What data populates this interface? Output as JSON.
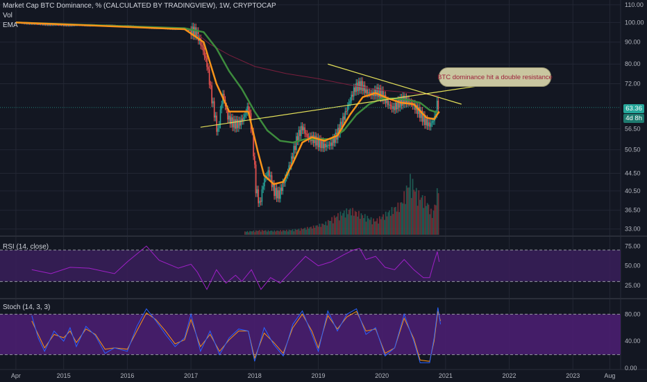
{
  "header": {
    "main_title": "Market Cap BTC Dominance, % (CALCULATED BY TRADINGVIEW), 1W, CRYPTOCAP",
    "vol_label": "Vol",
    "ema_label": "EMA",
    "rsi_title": "RSI (14, close)",
    "stoch_title": "Stoch (14, 3, 3)"
  },
  "price_labels": {
    "last_value": "63.36",
    "countdown": "4d 8h"
  },
  "annotation": {
    "text": "BTC dominance hit a double resistance"
  },
  "colors": {
    "background": "#131722",
    "grid": "#232734",
    "up_candle": "#26a69a",
    "down_candle": "#ef5350",
    "ema_fast": "#f7931a",
    "ema_slow": "#3d8b3d",
    "ema_long": "#7a1f3d",
    "trendline": "#e6e25a",
    "rsi_line": "#a020c8",
    "rsi_band": "#3a1e5a",
    "stoch_k": "#2962ff",
    "stoch_d": "#f7931a",
    "stoch_band": "#4a1e70",
    "price_label_bg": "#26a69a"
  },
  "chart_data": [
    {
      "type": "candlestick",
      "title": "Market Cap BTC Dominance, % (CALCULATED BY TRADINGVIEW), 1W, CRYPTOCAP",
      "y_scale": "log",
      "ylim": [
        32,
        112
      ],
      "y_ticks": [
        "110.00",
        "100.00",
        "90.00",
        "80.00",
        "72.00",
        "56.50",
        "50.50",
        "44.50",
        "40.50",
        "36.50",
        "33.00"
      ],
      "x_ticks": [
        "Apr",
        "2015",
        "2016",
        "2017",
        "2018",
        "2019",
        "2020",
        "2021",
        "2022",
        "2023",
        "Aug"
      ],
      "x_dates": [
        2014.25,
        2015.0,
        2016.0,
        2017.0,
        2018.0,
        2019.0,
        2020.0,
        2021.0,
        2022.0,
        2023.0,
        2023.58
      ],
      "close_points": [
        [
          2014.25,
          100.0
        ],
        [
          2014.6,
          99.0
        ],
        [
          2015.0,
          98.5
        ],
        [
          2015.5,
          98.5
        ],
        [
          2016.0,
          98.0
        ],
        [
          2016.5,
          97.0
        ],
        [
          2016.9,
          96.5
        ],
        [
          2017.08,
          95.0
        ],
        [
          2017.17,
          88.0
        ],
        [
          2017.25,
          80.0
        ],
        [
          2017.33,
          66.0
        ],
        [
          2017.42,
          55.0
        ],
        [
          2017.5,
          68.0
        ],
        [
          2017.58,
          60.0
        ],
        [
          2017.67,
          58.0
        ],
        [
          2017.75,
          58.0
        ],
        [
          2017.83,
          60.0
        ],
        [
          2017.9,
          64.0
        ],
        [
          2017.96,
          55.0
        ],
        [
          2018.02,
          41.0
        ],
        [
          2018.08,
          37.5
        ],
        [
          2018.15,
          43.0
        ],
        [
          2018.22,
          45.0
        ],
        [
          2018.3,
          40.5
        ],
        [
          2018.38,
          39.5
        ],
        [
          2018.5,
          44.0
        ],
        [
          2018.58,
          48.0
        ],
        [
          2018.67,
          54.0
        ],
        [
          2018.75,
          57.0
        ],
        [
          2018.83,
          54.0
        ],
        [
          2018.92,
          53.5
        ],
        [
          2019.0,
          52.5
        ],
        [
          2019.1,
          51.5
        ],
        [
          2019.2,
          52.0
        ],
        [
          2019.3,
          55.0
        ],
        [
          2019.4,
          60.0
        ],
        [
          2019.5,
          66.0
        ],
        [
          2019.58,
          70.5
        ],
        [
          2019.67,
          71.5
        ],
        [
          2019.75,
          69.0
        ],
        [
          2019.83,
          68.0
        ],
        [
          2019.92,
          69.0
        ],
        [
          2020.0,
          68.0
        ],
        [
          2020.08,
          65.0
        ],
        [
          2020.17,
          63.0
        ],
        [
          2020.25,
          64.5
        ],
        [
          2020.33,
          66.0
        ],
        [
          2020.42,
          65.5
        ],
        [
          2020.5,
          64.0
        ],
        [
          2020.58,
          62.0
        ],
        [
          2020.67,
          59.0
        ],
        [
          2020.75,
          57.5
        ],
        [
          2020.83,
          60.0
        ],
        [
          2020.87,
          65.0
        ],
        [
          2020.9,
          63.36
        ]
      ],
      "ema_fast_points": [
        [
          2014.25,
          100.0
        ],
        [
          2016.9,
          96.5
        ],
        [
          2017.2,
          90.0
        ],
        [
          2017.4,
          72.0
        ],
        [
          2017.6,
          62.0
        ],
        [
          2017.9,
          62.0
        ],
        [
          2018.05,
          50.0
        ],
        [
          2018.15,
          44.0
        ],
        [
          2018.3,
          42.0
        ],
        [
          2018.45,
          42.5
        ],
        [
          2018.6,
          47.0
        ],
        [
          2018.75,
          52.5
        ],
        [
          2018.9,
          54.0
        ],
        [
          2019.1,
          53.0
        ],
        [
          2019.3,
          54.5
        ],
        [
          2019.5,
          61.0
        ],
        [
          2019.7,
          67.0
        ],
        [
          2019.9,
          68.5
        ],
        [
          2020.1,
          66.5
        ],
        [
          2020.3,
          65.0
        ],
        [
          2020.5,
          64.5
        ],
        [
          2020.7,
          60.0
        ],
        [
          2020.82,
          59.5
        ],
        [
          2020.9,
          62.0
        ]
      ],
      "ema_slow_points": [
        [
          2014.25,
          100.0
        ],
        [
          2016.9,
          97.0
        ],
        [
          2017.2,
          95.0
        ],
        [
          2017.4,
          87.0
        ],
        [
          2017.6,
          77.0
        ],
        [
          2017.8,
          70.0
        ],
        [
          2018.0,
          62.0
        ],
        [
          2018.2,
          56.0
        ],
        [
          2018.4,
          53.0
        ],
        [
          2018.6,
          52.5
        ],
        [
          2018.8,
          53.5
        ],
        [
          2019.0,
          53.5
        ],
        [
          2019.2,
          53.5
        ],
        [
          2019.4,
          56.0
        ],
        [
          2019.6,
          61.0
        ],
        [
          2019.8,
          64.5
        ],
        [
          2020.0,
          66.5
        ],
        [
          2020.2,
          66.5
        ],
        [
          2020.4,
          66.0
        ],
        [
          2020.6,
          65.0
        ],
        [
          2020.75,
          62.5
        ],
        [
          2020.9,
          61.5
        ]
      ],
      "ema_long_points": [
        [
          2017.1,
          94.0
        ],
        [
          2017.3,
          89.0
        ],
        [
          2017.6,
          84.0
        ],
        [
          2018.0,
          79.0
        ],
        [
          2018.5,
          76.0
        ],
        [
          2019.0,
          74.0
        ],
        [
          2019.5,
          71.5
        ],
        [
          2020.0,
          69.5
        ],
        [
          2020.5,
          68.5
        ],
        [
          2020.9,
          67.5
        ]
      ],
      "volume_points": [
        [
          2017.9,
          0.06
        ],
        [
          2018.1,
          0.08
        ],
        [
          2018.3,
          0.07
        ],
        [
          2018.5,
          0.08
        ],
        [
          2018.7,
          0.1
        ],
        [
          2018.9,
          0.14
        ],
        [
          2019.1,
          0.2
        ],
        [
          2019.3,
          0.35
        ],
        [
          2019.5,
          0.45
        ],
        [
          2019.7,
          0.35
        ],
        [
          2019.9,
          0.25
        ],
        [
          2020.1,
          0.4
        ],
        [
          2020.3,
          0.55
        ],
        [
          2020.45,
          1.0
        ],
        [
          2020.55,
          0.75
        ],
        [
          2020.7,
          0.6
        ],
        [
          2020.8,
          0.35
        ],
        [
          2020.87,
          0.75
        ],
        [
          2020.9,
          1.1
        ]
      ],
      "trendlines": [
        {
          "from": [
            2017.15,
            57.0
          ],
          "to": [
            2021.75,
            72.0
          ]
        },
        {
          "from": [
            2019.15,
            80.0
          ],
          "to": [
            2021.25,
            64.5
          ]
        }
      ]
    },
    {
      "type": "line",
      "title": "RSI (14, close)",
      "ylim": [
        10,
        85
      ],
      "y_ticks": [
        "75.00",
        "50.00",
        "25.00"
      ],
      "bands": [
        30,
        70
      ],
      "points": [
        [
          2014.5,
          45
        ],
        [
          2014.8,
          40
        ],
        [
          2015.1,
          48
        ],
        [
          2015.4,
          47
        ],
        [
          2015.8,
          40
        ],
        [
          2016.0,
          55
        ],
        [
          2016.15,
          65
        ],
        [
          2016.3,
          75
        ],
        [
          2016.5,
          57
        ],
        [
          2016.8,
          47
        ],
        [
          2017.0,
          52
        ],
        [
          2017.1,
          42
        ],
        [
          2017.25,
          20
        ],
        [
          2017.4,
          45
        ],
        [
          2017.55,
          28
        ],
        [
          2017.7,
          38
        ],
        [
          2017.8,
          30
        ],
        [
          2017.95,
          45
        ],
        [
          2018.1,
          20
        ],
        [
          2018.25,
          35
        ],
        [
          2018.4,
          28
        ],
        [
          2018.6,
          45
        ],
        [
          2018.8,
          62
        ],
        [
          2019.0,
          50
        ],
        [
          2019.2,
          55
        ],
        [
          2019.4,
          64
        ],
        [
          2019.55,
          70
        ],
        [
          2019.65,
          72
        ],
        [
          2019.75,
          58
        ],
        [
          2019.9,
          62
        ],
        [
          2020.05,
          48
        ],
        [
          2020.2,
          45
        ],
        [
          2020.35,
          58
        ],
        [
          2020.5,
          45
        ],
        [
          2020.65,
          35
        ],
        [
          2020.75,
          35
        ],
        [
          2020.82,
          55
        ],
        [
          2020.87,
          68
        ],
        [
          2020.9,
          55
        ]
      ]
    },
    {
      "type": "line",
      "title": "Stoch (14, 3, 3)",
      "ylim": [
        0,
        100
      ],
      "y_ticks": [
        "80.00",
        "40.00",
        "0.00"
      ],
      "bands": [
        20,
        80
      ],
      "series": [
        {
          "points": [
            [
              2014.5,
              78
            ],
            [
              2014.6,
              45
            ],
            [
              2014.7,
              25
            ],
            [
              2014.85,
              55
            ],
            [
              2015.0,
              40
            ],
            [
              2015.1,
              60
            ],
            [
              2015.2,
              32
            ],
            [
              2015.35,
              62
            ],
            [
              2015.5,
              48
            ],
            [
              2015.65,
              22
            ],
            [
              2015.8,
              30
            ],
            [
              2016.0,
              25
            ],
            [
              2016.15,
              62
            ],
            [
              2016.3,
              88
            ],
            [
              2016.45,
              70
            ],
            [
              2016.6,
              50
            ],
            [
              2016.75,
              32
            ],
            [
              2016.9,
              45
            ],
            [
              2017.0,
              80
            ],
            [
              2017.15,
              25
            ],
            [
              2017.3,
              55
            ],
            [
              2017.45,
              20
            ],
            [
              2017.6,
              45
            ],
            [
              2017.75,
              58
            ],
            [
              2017.9,
              55
            ],
            [
              2018.0,
              10
            ],
            [
              2018.15,
              60
            ],
            [
              2018.3,
              35
            ],
            [
              2018.45,
              18
            ],
            [
              2018.6,
              65
            ],
            [
              2018.75,
              85
            ],
            [
              2018.9,
              50
            ],
            [
              2019.0,
              25
            ],
            [
              2019.15,
              85
            ],
            [
              2019.3,
              55
            ],
            [
              2019.45,
              80
            ],
            [
              2019.6,
              88
            ],
            [
              2019.75,
              50
            ],
            [
              2019.9,
              60
            ],
            [
              2020.05,
              18
            ],
            [
              2020.2,
              30
            ],
            [
              2020.35,
              80
            ],
            [
              2020.5,
              40
            ],
            [
              2020.6,
              8
            ],
            [
              2020.75,
              8
            ],
            [
              2020.82,
              45
            ],
            [
              2020.88,
              90
            ],
            [
              2020.92,
              65
            ]
          ]
        },
        {
          "points": [
            [
              2014.5,
              70
            ],
            [
              2014.6,
              50
            ],
            [
              2014.7,
              30
            ],
            [
              2014.85,
              50
            ],
            [
              2015.0,
              45
            ],
            [
              2015.1,
              55
            ],
            [
              2015.2,
              38
            ],
            [
              2015.35,
              58
            ],
            [
              2015.5,
              50
            ],
            [
              2015.65,
              28
            ],
            [
              2015.8,
              30
            ],
            [
              2016.0,
              28
            ],
            [
              2016.15,
              55
            ],
            [
              2016.3,
              82
            ],
            [
              2016.45,
              72
            ],
            [
              2016.6,
              55
            ],
            [
              2016.75,
              36
            ],
            [
              2016.9,
              42
            ],
            [
              2017.0,
              72
            ],
            [
              2017.15,
              32
            ],
            [
              2017.3,
              50
            ],
            [
              2017.45,
              25
            ],
            [
              2017.6,
              42
            ],
            [
              2017.75,
              55
            ],
            [
              2017.9,
              55
            ],
            [
              2018.0,
              15
            ],
            [
              2018.15,
              52
            ],
            [
              2018.3,
              38
            ],
            [
              2018.45,
              22
            ],
            [
              2018.6,
              60
            ],
            [
              2018.75,
              80
            ],
            [
              2018.9,
              55
            ],
            [
              2019.0,
              30
            ],
            [
              2019.15,
              78
            ],
            [
              2019.3,
              58
            ],
            [
              2019.45,
              76
            ],
            [
              2019.6,
              84
            ],
            [
              2019.75,
              55
            ],
            [
              2019.9,
              58
            ],
            [
              2020.05,
              22
            ],
            [
              2020.2,
              30
            ],
            [
              2020.35,
              74
            ],
            [
              2020.5,
              44
            ],
            [
              2020.6,
              12
            ],
            [
              2020.75,
              10
            ],
            [
              2020.82,
              40
            ],
            [
              2020.88,
              85
            ],
            [
              2020.92,
              70
            ]
          ]
        }
      ]
    }
  ]
}
